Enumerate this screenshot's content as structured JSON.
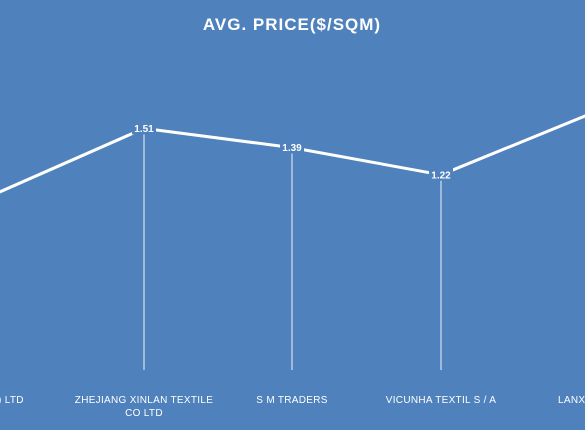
{
  "chart_data": {
    "type": "line",
    "title": "AVG. PRICE($/SQM)",
    "categories": [
      [
        "(INDIA) LTD"
      ],
      [
        "ZHEJIANG XINLAN TEXTILE",
        "CO LTD"
      ],
      [
        "S M TRADERS"
      ],
      [
        "VICUNHA TEXTIL S / A"
      ],
      [
        "LANXI YONG"
      ]
    ],
    "values": [
      1.1,
      1.51,
      1.39,
      1.22,
      1.6
    ],
    "data_labels": [
      "",
      "1.51",
      "1.39",
      "1.22",
      ""
    ],
    "ylim": [
      0,
      1.85
    ],
    "grid": false,
    "legend": "none",
    "colors": {
      "background": "#4f81bd",
      "line": "#ffffff",
      "drop_lines": "#ffffff",
      "text": "#ffffff"
    }
  }
}
